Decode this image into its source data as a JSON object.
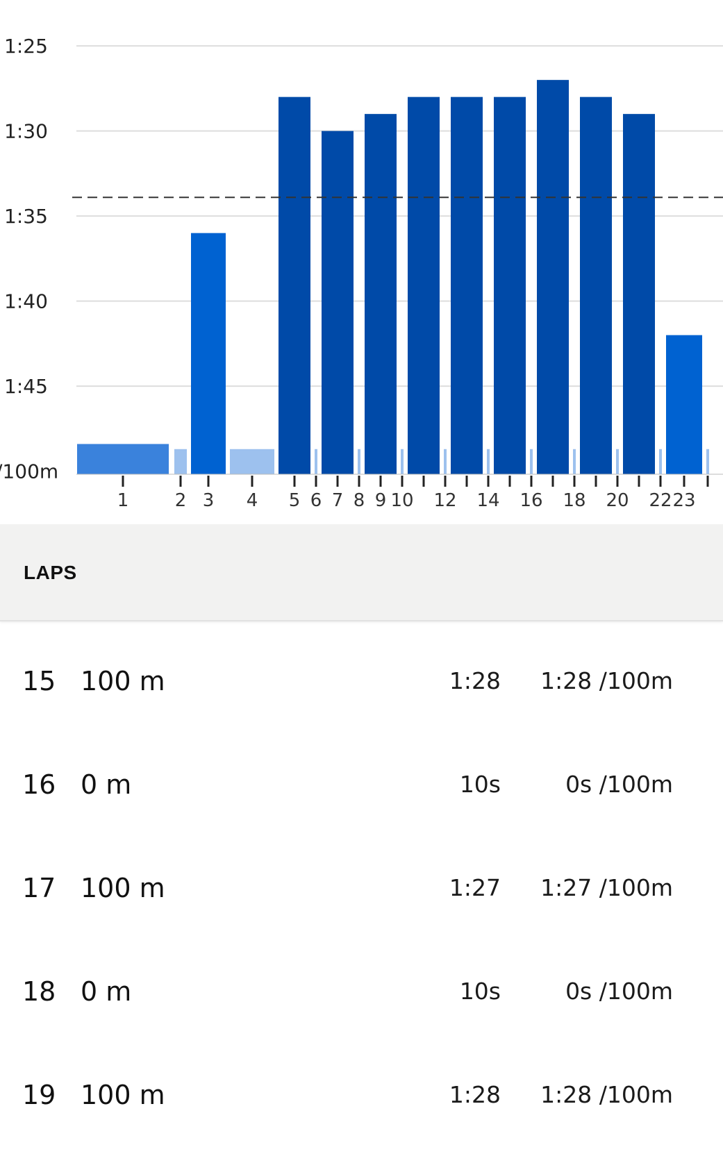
{
  "chart_data": {
    "type": "bar",
    "title": "",
    "xlabel": "",
    "ylabel": "/100m",
    "y_axis": {
      "tick_labels": [
        "1:25",
        "1:30",
        "1:35",
        "1:40",
        "1:45",
        "/100m"
      ],
      "tick_values_seconds": [
        85,
        90,
        95,
        100,
        105,
        110
      ],
      "inverted": true,
      "ylim_seconds": [
        84,
        110
      ]
    },
    "x_tick_labels": [
      "1",
      "2",
      "3",
      "4",
      "5",
      "6",
      "7",
      "8",
      "9",
      "10",
      "12",
      "14",
      "16",
      "18",
      "20",
      "22",
      "23"
    ],
    "reference_line_seconds": 93.9,
    "grid": true,
    "colors": {
      "active_dark": "#004aa8",
      "active_medium": "#0062d1",
      "active_light": "#3a82dc",
      "rest": "#9dc1ee",
      "grid": "#dddddd",
      "reference": "#333333"
    },
    "bars": [
      {
        "lap": "1",
        "pace_seconds": 108.4,
        "kind": "active_light"
      },
      {
        "lap": "2",
        "pace_seconds": 108.7,
        "kind": "rest"
      },
      {
        "lap": "3",
        "pace_seconds": 96.0,
        "kind": "active_medium"
      },
      {
        "lap": "4",
        "pace_seconds": 108.7,
        "kind": "rest"
      },
      {
        "lap": "5",
        "pace_seconds": 88.0,
        "kind": "active_dark"
      },
      {
        "lap": "6",
        "pace_seconds": 108.7,
        "kind": "rest"
      },
      {
        "lap": "7",
        "pace_seconds": 90.0,
        "kind": "active_dark"
      },
      {
        "lap": "8",
        "pace_seconds": 108.7,
        "kind": "rest"
      },
      {
        "lap": "9",
        "pace_seconds": 89.0,
        "kind": "active_dark"
      },
      {
        "lap": "10",
        "pace_seconds": 108.7,
        "kind": "rest"
      },
      {
        "lap": "11",
        "pace_seconds": 88.0,
        "kind": "active_dark"
      },
      {
        "lap": "12",
        "pace_seconds": 108.7,
        "kind": "rest"
      },
      {
        "lap": "13",
        "pace_seconds": 88.0,
        "kind": "active_dark"
      },
      {
        "lap": "14",
        "pace_seconds": 108.7,
        "kind": "rest"
      },
      {
        "lap": "15",
        "pace_seconds": 88.0,
        "kind": "active_dark"
      },
      {
        "lap": "16",
        "pace_seconds": 108.7,
        "kind": "rest"
      },
      {
        "lap": "17",
        "pace_seconds": 87.0,
        "kind": "active_dark"
      },
      {
        "lap": "18",
        "pace_seconds": 108.7,
        "kind": "rest"
      },
      {
        "lap": "19",
        "pace_seconds": 88.0,
        "kind": "active_dark"
      },
      {
        "lap": "20",
        "pace_seconds": 108.7,
        "kind": "rest"
      },
      {
        "lap": "21",
        "pace_seconds": 89.0,
        "kind": "active_dark"
      },
      {
        "lap": "22",
        "pace_seconds": 108.7,
        "kind": "rest"
      },
      {
        "lap": "23",
        "pace_seconds": 102.0,
        "kind": "active_medium"
      },
      {
        "lap": "24",
        "pace_seconds": 108.7,
        "kind": "rest"
      }
    ]
  },
  "laps_section": {
    "title": "LAPS"
  },
  "laps": [
    {
      "number": "15",
      "distance": "100 m",
      "time": "1:28",
      "pace": "1:28 /100m"
    },
    {
      "number": "16",
      "distance": "0 m",
      "time": "10s",
      "pace": "0s /100m"
    },
    {
      "number": "17",
      "distance": "100 m",
      "time": "1:27",
      "pace": "1:27 /100m"
    },
    {
      "number": "18",
      "distance": "0 m",
      "time": "10s",
      "pace": "0s /100m"
    },
    {
      "number": "19",
      "distance": "100 m",
      "time": "1:28",
      "pace": "1:28 /100m"
    }
  ]
}
